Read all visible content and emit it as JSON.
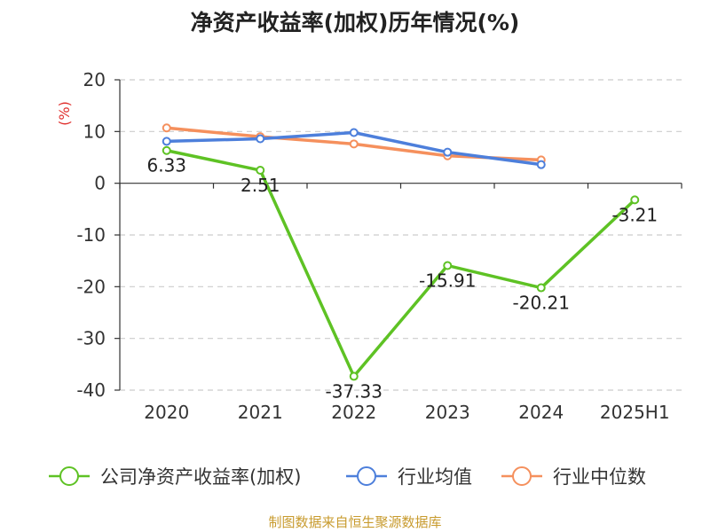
{
  "chart_data": {
    "type": "line",
    "title": "净资产收益率(加权)历年情况(%)",
    "ylabel": "(%)",
    "categories": [
      "2020",
      "2021",
      "2022",
      "2023",
      "2024",
      "2025H1"
    ],
    "ylim": [
      -40,
      20
    ],
    "yticks": [
      20,
      10,
      0,
      -10,
      -20,
      -30,
      -40
    ],
    "grid": true,
    "legend_position": "bottom",
    "series": [
      {
        "name": "公司净资产收益率(加权)",
        "color": "#5ec224",
        "values": [
          6.33,
          2.51,
          -37.33,
          -15.91,
          -20.21,
          -3.21
        ],
        "labels": [
          "6.33",
          "2.51",
          "-37.33",
          "-15.91",
          "-20.21",
          "-3.21"
        ]
      },
      {
        "name": "行业均值",
        "color": "#4d7fdb",
        "values": [
          8.1,
          8.6,
          9.8,
          6.0,
          3.6,
          null
        ]
      },
      {
        "name": "行业中位数",
        "color": "#f5905d",
        "values": [
          10.7,
          9.0,
          7.6,
          5.3,
          4.5,
          null
        ]
      }
    ]
  },
  "footer": {
    "source": "制图数据来自恒生聚源数据库"
  }
}
